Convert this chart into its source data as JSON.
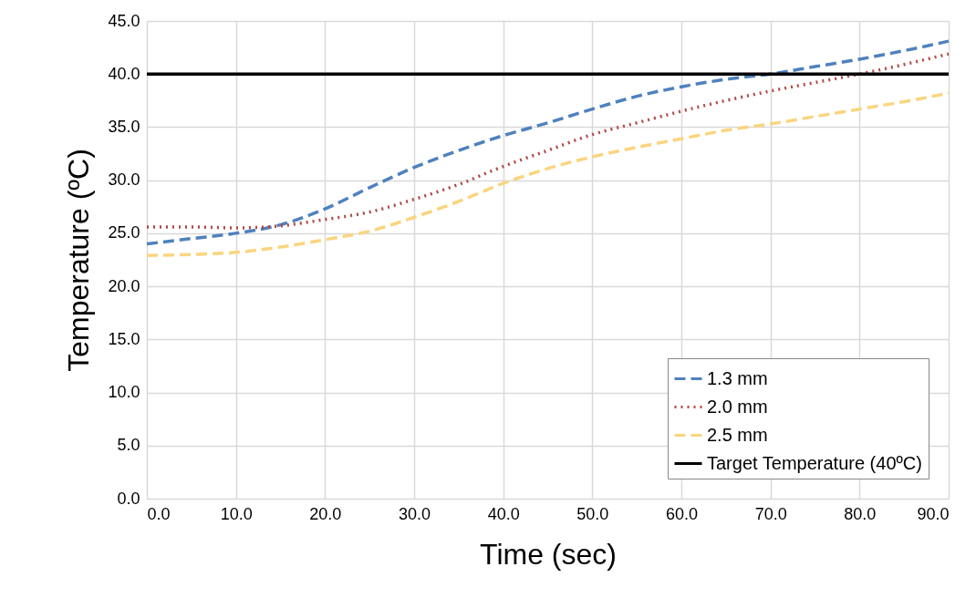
{
  "chart_data": {
    "type": "line",
    "xlabel": "Time (sec)",
    "ylabel": "Temperature (ºC)",
    "x": [
      0,
      5,
      10,
      15,
      20,
      25,
      30,
      35,
      40,
      45,
      50,
      55,
      60,
      65,
      70,
      75,
      80,
      85,
      90
    ],
    "series": [
      {
        "name": "1.3 mm",
        "color": "#4f81bd",
        "line_style": "dashed",
        "values": [
          24.0,
          24.5,
          25.0,
          25.8,
          27.3,
          29.3,
          31.2,
          32.8,
          34.2,
          35.4,
          36.7,
          37.9,
          38.8,
          39.5,
          40.0,
          40.7,
          41.4,
          42.2,
          43.1
        ]
      },
      {
        "name": "2.0 mm",
        "color": "#b04a45",
        "line_style": "dotted",
        "values": [
          25.6,
          25.6,
          25.5,
          25.7,
          26.3,
          27.0,
          28.2,
          29.6,
          31.3,
          32.8,
          34.3,
          35.4,
          36.5,
          37.5,
          38.4,
          39.2,
          40.0,
          40.9,
          41.9
        ]
      },
      {
        "name": "2.5 mm",
        "color": "#fad57f",
        "line_style": "dashed",
        "values": [
          22.9,
          23.0,
          23.2,
          23.7,
          24.4,
          25.2,
          26.5,
          28.0,
          29.7,
          31.1,
          32.2,
          33.1,
          33.9,
          34.7,
          35.3,
          36.0,
          36.7,
          37.4,
          38.2
        ]
      },
      {
        "name": "Target Temperature (40ºC)",
        "color": "#000000",
        "line_style": "solid",
        "x": [
          0,
          90
        ],
        "values": [
          40,
          40
        ]
      }
    ],
    "xlim": [
      0,
      90
    ],
    "xticks": [
      {
        "value": 0,
        "label": "0.0"
      },
      {
        "value": 10,
        "label": "10.0"
      },
      {
        "value": 20,
        "label": "20.0"
      },
      {
        "value": 30,
        "label": "30.0"
      },
      {
        "value": 40,
        "label": "40.0"
      },
      {
        "value": 50,
        "label": "50.0"
      },
      {
        "value": 60,
        "label": "60.0"
      },
      {
        "value": 70,
        "label": "70.0"
      },
      {
        "value": 80,
        "label": "80.0"
      },
      {
        "value": 90,
        "label": "90.0"
      }
    ],
    "ylim": [
      0,
      45
    ],
    "yticks": [
      {
        "value": 0,
        "label": "0.0"
      },
      {
        "value": 5,
        "label": "5.0"
      },
      {
        "value": 10,
        "label": "10.0"
      },
      {
        "value": 15,
        "label": "15.0"
      },
      {
        "value": 20,
        "label": "20.0"
      },
      {
        "value": 25,
        "label": "25.0"
      },
      {
        "value": 30,
        "label": "30.0"
      },
      {
        "value": 35,
        "label": "35.0"
      },
      {
        "value": 40,
        "label": "40.0"
      },
      {
        "value": 45,
        "label": "45.0"
      }
    ],
    "grid": true,
    "legend": "bottom right",
    "marker": "none"
  }
}
